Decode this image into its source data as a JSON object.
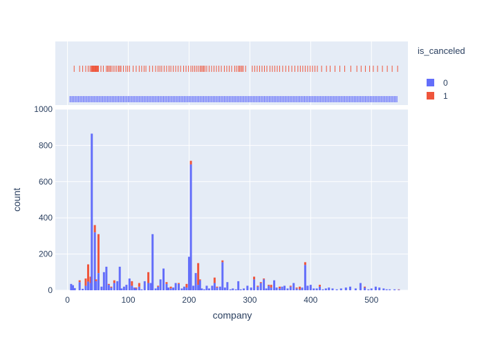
{
  "colors": {
    "plot_bg": "#e5ecf6",
    "grid": "#ffffff",
    "series_0": "#636efa",
    "series_1": "#ef553b",
    "text": "#2a3f5f"
  },
  "chart_data": {
    "type": "bar",
    "barmode": "stack",
    "xlabel": "company",
    "ylabel": "count",
    "xlim": [
      -20,
      560
    ],
    "ylim": [
      0,
      1000
    ],
    "x_ticks": [
      0,
      100,
      200,
      300,
      400,
      500
    ],
    "y_ticks": [
      0,
      200,
      400,
      600,
      800,
      1000
    ],
    "grid": true,
    "legend": {
      "title": "is_canceled",
      "placement": "right",
      "entries": [
        "0",
        "1"
      ]
    },
    "marginal": "rug",
    "x": [
      6,
      9,
      12,
      20,
      25,
      30,
      34,
      38,
      40,
      45,
      47,
      51,
      56,
      60,
      64,
      68,
      72,
      77,
      82,
      86,
      89,
      93,
      97,
      102,
      106,
      110,
      113,
      118,
      122,
      127,
      133,
      137,
      140,
      145,
      149,
      153,
      158,
      163,
      166,
      170,
      174,
      178,
      183,
      188,
      192,
      196,
      200,
      203,
      207,
      211,
      215,
      218,
      221,
      225,
      229,
      233,
      238,
      242,
      246,
      251,
      255,
      259,
      263,
      268,
      272,
      277,
      281,
      285,
      290,
      296,
      302,
      307,
      313,
      318,
      323,
      327,
      331,
      335,
      340,
      344,
      349,
      353,
      357,
      362,
      367,
      372,
      377,
      382,
      386,
      391,
      395,
      400,
      405,
      410,
      415,
      420,
      425,
      430,
      436,
      443,
      450,
      458,
      465,
      474,
      482,
      489,
      495,
      500,
      507,
      513,
      520,
      525,
      530,
      538,
      545
    ],
    "series": [
      {
        "name": "0",
        "values": [
          35,
          28,
          12,
          45,
          8,
          25,
          48,
          40,
          865,
          320,
          50,
          95,
          20,
          100,
          130,
          30,
          15,
          40,
          50,
          130,
          10,
          20,
          30,
          65,
          25,
          15,
          10,
          20,
          5,
          50,
          40,
          40,
          310,
          10,
          20,
          60,
          120,
          35,
          15,
          10,
          15,
          40,
          35,
          10,
          20,
          15,
          185,
          695,
          25,
          95,
          30,
          55,
          10,
          5,
          25,
          10,
          25,
          40,
          15,
          20,
          155,
          15,
          45,
          5,
          10,
          5,
          50,
          5,
          10,
          25,
          15,
          60,
          20,
          40,
          60,
          10,
          25,
          15,
          55,
          15,
          10,
          20,
          25,
          10,
          20,
          40,
          10,
          5,
          15,
          140,
          25,
          30,
          10,
          10,
          20,
          5,
          10,
          15,
          10,
          5,
          10,
          15,
          20,
          10,
          40,
          15,
          5,
          10,
          20,
          15,
          10,
          5,
          5,
          5,
          3
        ]
      },
      {
        "name": "1",
        "values": [
          0,
          0,
          0,
          10,
          0,
          40,
          95,
          35,
          0,
          40,
          10,
          215,
          0,
          0,
          0,
          5,
          5,
          15,
          0,
          0,
          0,
          0,
          0,
          0,
          25,
          0,
          5,
          20,
          0,
          0,
          60,
          0,
          0,
          0,
          5,
          0,
          0,
          10,
          0,
          10,
          0,
          0,
          5,
          0,
          0,
          20,
          0,
          20,
          0,
          0,
          120,
          5,
          0,
          0,
          0,
          0,
          0,
          30,
          5,
          0,
          10,
          0,
          0,
          0,
          0,
          0,
          0,
          0,
          0,
          0,
          0,
          15,
          5,
          5,
          5,
          0,
          5,
          15,
          0,
          0,
          10,
          0,
          0,
          0,
          5,
          0,
          5,
          15,
          0,
          15,
          0,
          0,
          0,
          0,
          10,
          0,
          0,
          0,
          0,
          0,
          0,
          0,
          0,
          0,
          0,
          5,
          0,
          0,
          0,
          0,
          0,
          0,
          0,
          0,
          2
        ]
      }
    ],
    "rug_0": [
      4,
      6,
      8,
      10,
      12,
      14,
      16,
      18,
      20,
      22,
      24,
      26,
      28,
      30,
      32,
      34,
      36,
      38,
      40,
      42,
      44,
      46,
      48,
      50,
      52,
      54,
      56,
      58,
      60,
      62,
      64,
      66,
      68,
      70,
      72,
      74,
      76,
      78,
      80,
      82,
      84,
      86,
      88,
      90,
      92,
      94,
      96,
      98,
      100,
      102,
      104,
      106,
      108,
      110,
      112,
      114,
      116,
      118,
      120,
      122,
      124,
      126,
      128,
      130,
      132,
      134,
      136,
      138,
      140,
      142,
      144,
      146,
      148,
      150,
      152,
      154,
      156,
      158,
      160,
      162,
      164,
      166,
      168,
      170,
      172,
      174,
      176,
      178,
      180,
      182,
      184,
      186,
      188,
      190,
      192,
      194,
      196,
      198,
      200,
      202,
      204,
      206,
      208,
      210,
      212,
      214,
      216,
      218,
      220,
      222,
      224,
      226,
      228,
      230,
      232,
      234,
      236,
      238,
      240,
      242,
      244,
      246,
      248,
      250,
      252,
      254,
      256,
      258,
      260,
      262,
      264,
      266,
      268,
      270,
      272,
      274,
      276,
      278,
      280,
      282,
      284,
      286,
      288,
      290,
      292,
      294,
      296,
      298,
      300,
      302,
      304,
      306,
      308,
      310,
      312,
      314,
      316,
      318,
      320,
      322,
      324,
      326,
      328,
      330,
      332,
      334,
      336,
      338,
      340,
      342,
      344,
      346,
      348,
      350,
      352,
      354,
      356,
      358,
      360,
      362,
      364,
      366,
      368,
      370,
      372,
      374,
      376,
      378,
      380,
      382,
      384,
      386,
      388,
      390,
      392,
      394,
      396,
      398,
      400,
      402,
      404,
      406,
      408,
      410,
      412,
      414,
      416,
      418,
      420,
      422,
      424,
      426,
      428,
      430,
      432,
      434,
      436,
      438,
      440,
      442,
      444,
      446,
      448,
      450,
      452,
      454,
      456,
      458,
      460,
      462,
      464,
      466,
      468,
      470,
      472,
      474,
      476,
      478,
      480,
      482,
      484,
      486,
      488,
      490,
      492,
      494,
      496,
      498,
      500,
      502,
      504,
      506,
      508,
      510,
      512,
      514,
      516,
      518,
      520,
      522,
      524,
      526,
      528,
      530,
      532,
      534,
      536,
      538,
      540,
      542
    ],
    "rug_1": [
      11,
      20,
      25,
      30,
      34,
      37,
      39,
      40,
      41,
      42,
      43,
      44,
      45,
      46,
      47,
      48,
      49,
      50,
      51,
      55,
      59,
      64,
      66,
      68,
      70,
      72,
      75,
      78,
      81,
      84,
      86,
      88,
      92,
      96,
      99,
      102,
      108,
      113,
      118,
      122,
      126,
      129,
      135,
      140,
      145,
      149,
      152,
      155,
      159,
      163,
      167,
      170,
      174,
      178,
      182,
      186,
      191,
      195,
      199,
      203,
      206,
      209,
      212,
      215,
      218,
      220,
      222,
      224,
      226,
      229,
      233,
      237,
      241,
      245,
      249,
      253,
      258,
      262,
      266,
      270,
      275,
      278,
      281,
      283,
      285,
      287,
      289,
      293,
      304,
      308,
      312,
      316,
      320,
      324,
      328,
      333,
      337,
      341,
      345,
      349,
      354,
      359,
      364,
      369,
      374,
      379,
      383,
      387,
      391,
      395,
      399,
      403,
      407,
      411,
      418,
      426,
      432,
      440,
      448,
      456,
      466,
      476,
      483,
      490,
      497,
      503,
      510,
      518,
      526,
      534,
      543
    ]
  }
}
